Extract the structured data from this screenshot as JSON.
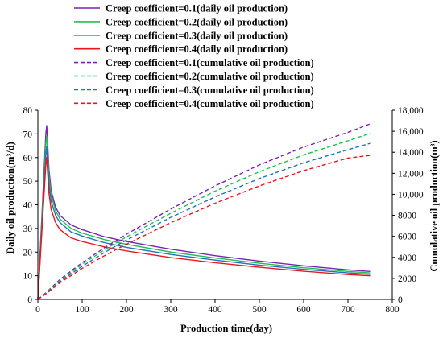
{
  "chart_data": {
    "type": "line",
    "xlabel": "Production time(day)",
    "ylabel_left": "Daily oil production(m³/d)",
    "ylabel_right": "Cumulative oil production(m³)",
    "xlim": [
      0,
      800
    ],
    "ylim_left": [
      0,
      80
    ],
    "ylim_right": [
      0,
      18000
    ],
    "x_ticks": [
      "0",
      "100",
      "200",
      "300",
      "400",
      "500",
      "600",
      "700",
      "800"
    ],
    "y_left_ticks": [
      "0",
      "10",
      "20",
      "30",
      "40",
      "50",
      "60",
      "70",
      "80"
    ],
    "y_right_ticks": [
      "0",
      "2000",
      "4000",
      "6000",
      "8000",
      "10,000",
      "12,000",
      "14,000",
      "16,000",
      "18,000"
    ],
    "grid": false,
    "legend_position": "top",
    "series": [
      {
        "name": "Creep coefficient=0.1(daily oil production)",
        "axis": "left",
        "style": "solid",
        "color": "#7B22B4",
        "x": [
          0,
          18,
          20,
          25,
          30,
          40,
          50,
          75,
          100,
          150,
          200,
          300,
          400,
          500,
          600,
          700,
          750
        ],
        "y": [
          0,
          70,
          73.5,
          55,
          46,
          39,
          35.5,
          31.5,
          29.5,
          26.5,
          24.5,
          21.2,
          18.5,
          16.2,
          14.2,
          12.5,
          11.8
        ]
      },
      {
        "name": "Creep coefficient=0.2(daily oil production)",
        "axis": "left",
        "style": "solid",
        "color": "#1FC152",
        "x": [
          0,
          18,
          20,
          25,
          30,
          40,
          50,
          75,
          100,
          150,
          200,
          300,
          400,
          500,
          600,
          700,
          750
        ],
        "y": [
          0,
          66,
          69,
          52,
          44,
          37.5,
          34,
          30,
          28,
          25.3,
          23.3,
          20,
          17.5,
          15.3,
          13.4,
          11.8,
          11.2
        ]
      },
      {
        "name": "Creep coefficient=0.3(daily oil production)",
        "axis": "left",
        "style": "solid",
        "color": "#1F73B8",
        "x": [
          0,
          18,
          20,
          25,
          30,
          40,
          50,
          75,
          100,
          150,
          200,
          300,
          400,
          500,
          600,
          700,
          750
        ],
        "y": [
          0,
          61,
          64.5,
          49,
          41.5,
          35.5,
          32.5,
          28.5,
          26.8,
          24,
          22,
          19,
          16.6,
          14.5,
          12.7,
          11.2,
          10.6
        ]
      },
      {
        "name": "Creep coefficient=0.4(daily oil production)",
        "axis": "left",
        "style": "solid",
        "color": "#E8171F",
        "x": [
          0,
          18,
          20,
          25,
          30,
          40,
          50,
          75,
          100,
          150,
          200,
          300,
          400,
          500,
          600,
          700,
          750
        ],
        "y": [
          0,
          57,
          60,
          45,
          38,
          32.5,
          29.5,
          26,
          24.5,
          22.2,
          20.5,
          17.7,
          15.5,
          13.6,
          11.9,
          10.5,
          10
        ]
      },
      {
        "name": "Creep coefficient=0.1(cumulative oil production)",
        "axis": "right",
        "style": "dashed",
        "color": "#7B22B4",
        "x": [
          0,
          20,
          50,
          100,
          150,
          200,
          300,
          400,
          500,
          600,
          700,
          750
        ],
        "y": [
          0,
          700,
          1900,
          3500,
          4900,
          6200,
          8600,
          10800,
          12800,
          14500,
          15900,
          16700
        ]
      },
      {
        "name": "Creep coefficient=0.2(cumulative oil production)",
        "axis": "right",
        "style": "dashed",
        "color": "#1FC152",
        "x": [
          0,
          20,
          50,
          100,
          150,
          200,
          300,
          400,
          500,
          600,
          700,
          750
        ],
        "y": [
          0,
          660,
          1800,
          3350,
          4700,
          5950,
          8200,
          10300,
          12150,
          13750,
          15100,
          15800
        ]
      },
      {
        "name": "Creep coefficient=0.3(cumulative oil production)",
        "axis": "right",
        "style": "dashed",
        "color": "#1F73B8",
        "x": [
          0,
          20,
          50,
          100,
          150,
          200,
          300,
          400,
          500,
          600,
          700,
          750
        ],
        "y": [
          0,
          620,
          1700,
          3150,
          4450,
          5650,
          7800,
          9750,
          11500,
          13000,
          14250,
          14850
        ]
      },
      {
        "name": "Creep coefficient=0.4(cumulative oil production)",
        "axis": "right",
        "style": "dashed",
        "color": "#E8171F",
        "x": [
          0,
          20,
          50,
          100,
          150,
          200,
          300,
          400,
          500,
          600,
          700,
          750
        ],
        "y": [
          0,
          580,
          1580,
          2950,
          4150,
          5250,
          7300,
          9150,
          10800,
          12250,
          13450,
          13700
        ]
      }
    ]
  }
}
